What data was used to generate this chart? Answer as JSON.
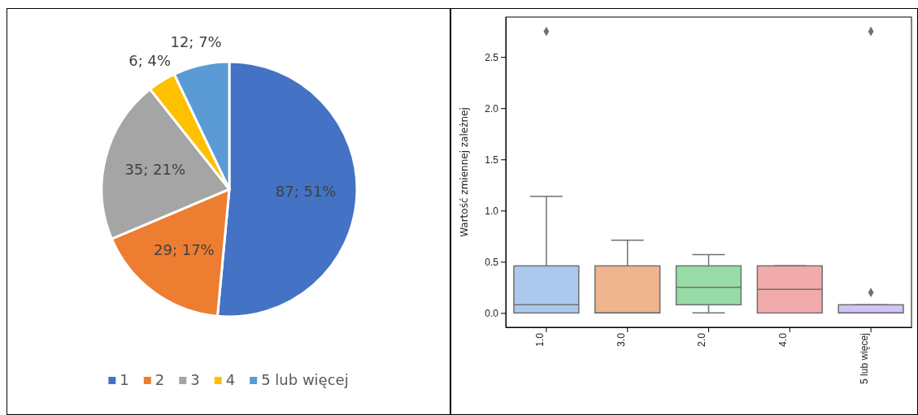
{
  "chart_data": [
    {
      "type": "pie",
      "categories": [
        "1",
        "2",
        "3",
        "4",
        "5 lub więcej"
      ],
      "values": [
        87,
        29,
        35,
        6,
        12
      ],
      "colors": [
        "#4472c4",
        "#ed7d31",
        "#a5a5a5",
        "#ffc000",
        "#5b9bd5"
      ],
      "value_labels": [
        "87; 51%",
        "29; 17%",
        "35; 21%",
        "6; 4%",
        "12; 7%"
      ],
      "legend": "bottom"
    },
    {
      "type": "box",
      "categories": [
        "1.0",
        "3.0",
        "2.0",
        "4.0",
        "5 lub więcej"
      ],
      "ylabel": "Wartość zmiennej zależnej",
      "colors": [
        "#abc9ec",
        "#efb58f",
        "#97dba6",
        "#f2abab",
        "#d1c3f5"
      ],
      "boxes": [
        {
          "low": 0,
          "q1": 0,
          "median": 0.08,
          "q3": 0.46,
          "high": 1.14,
          "outliers": [
            2.75
          ]
        },
        {
          "low": 0,
          "q1": 0,
          "median": 0,
          "q3": 0.46,
          "high": 0.71
        },
        {
          "low": 0,
          "q1": 0.08,
          "median": 0.25,
          "q3": 0.46,
          "high": 0.57
        },
        {
          "low": 0,
          "q1": 0,
          "median": 0.23,
          "q3": 0.46,
          "high": 0.46
        },
        {
          "low": 0,
          "q1": 0,
          "median": 0,
          "q3": 0.08,
          "high": 0.08,
          "outliers": [
            0.2,
            2.75
          ]
        }
      ],
      "ylim": [
        -0.14,
        2.89
      ],
      "yticks": [
        {
          "value": 0,
          "label": "0.0"
        },
        {
          "value": 0.5,
          "label": "0.5"
        },
        {
          "value": 1,
          "label": "1.0"
        },
        {
          "value": 1.5,
          "label": "1.5"
        },
        {
          "value": 2,
          "label": "2.0"
        },
        {
          "value": 2.5,
          "label": "2.5"
        }
      ],
      "marker": "diamond",
      "grid": false
    }
  ]
}
